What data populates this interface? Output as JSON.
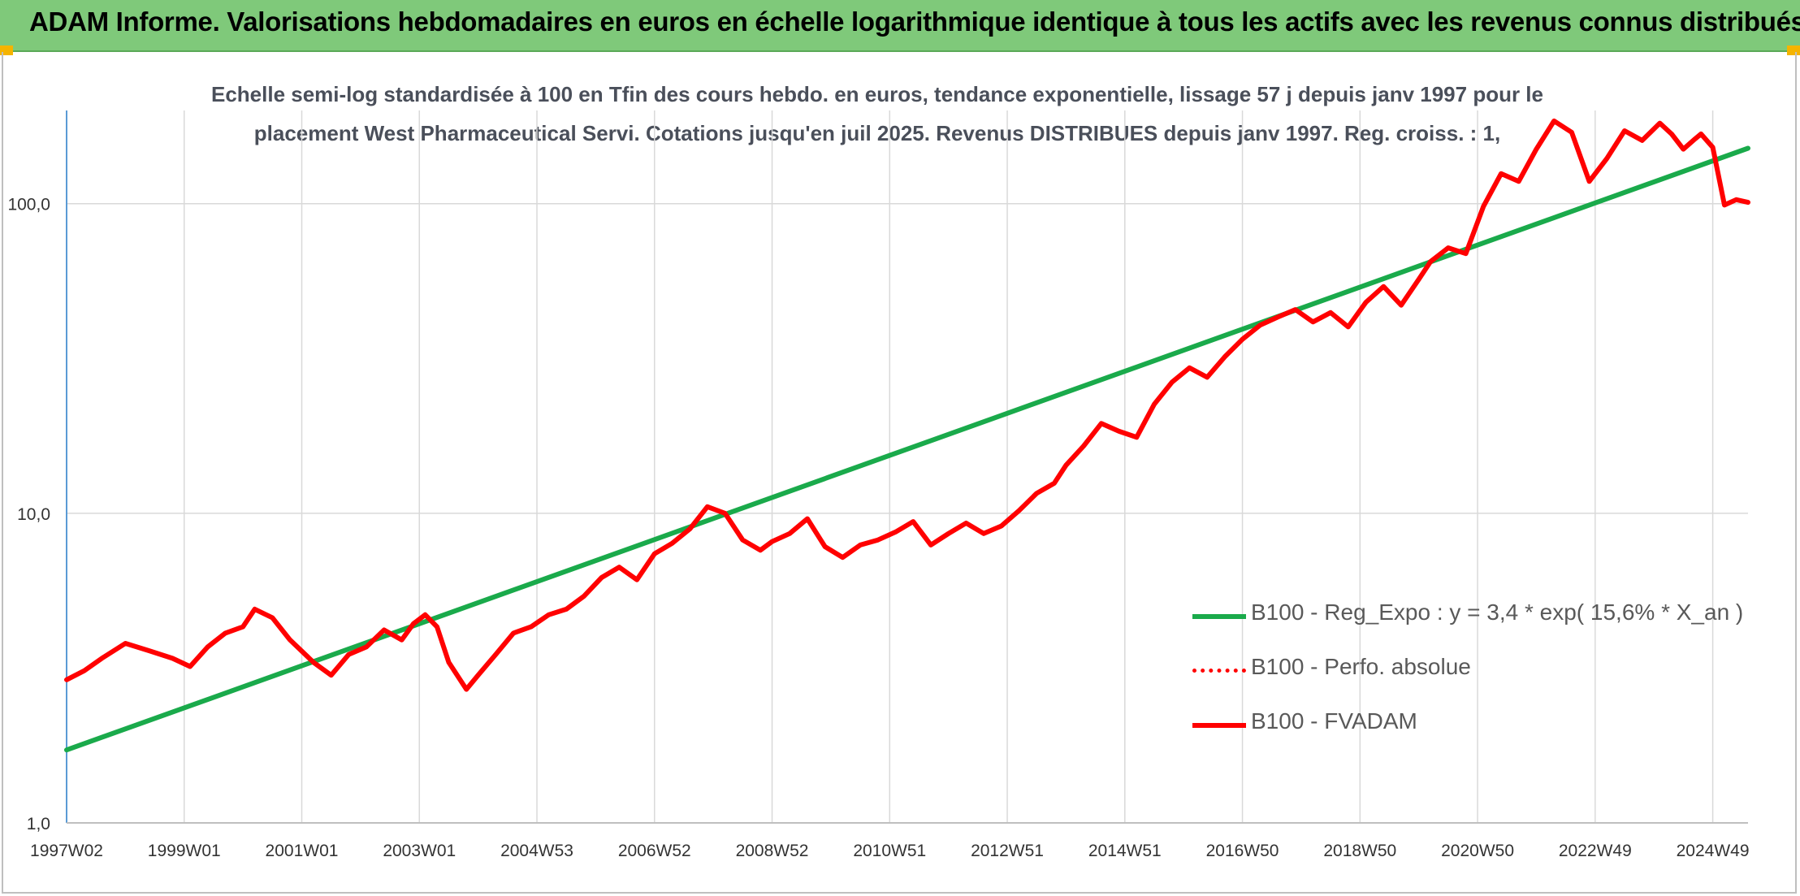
{
  "header": {
    "title": "ADAM Informe. Valorisations hebdomadaires en euros en échelle logarithmique identique à tous les actifs avec les revenus connus distribués"
  },
  "colors": {
    "banner": "#7fc97a",
    "trend": "#1aaa4b",
    "fvadam": "#ff0000",
    "perfo": "#ff0000",
    "grid": "#d9d9d9"
  },
  "chart_data": {
    "type": "line",
    "title": "Echelle semi-log standardisée à 100 en Tfin des cours hebdo. en euros, tendance exponentielle, lissage 57 j depuis janv 1997 pour le placement West Pharmaceutical Servi. Cotations jusqu'en juil 2025. Revenus DISTRIBUES depuis janv 1997. Reg. croiss. : 1,",
    "y_scale": "log",
    "ylim": [
      1,
      200
    ],
    "y_ticks": [
      1,
      10,
      100
    ],
    "y_tick_labels": [
      "1,0",
      "10,0",
      "100,0"
    ],
    "xlim": [
      1997.0,
      2025.6
    ],
    "x_tick_labels": [
      "1997W02",
      "1999W01",
      "2001W01",
      "2003W01",
      "2004W53",
      "2006W52",
      "2008W52",
      "2010W51",
      "2012W51",
      "2014W51",
      "2016W50",
      "2018W50",
      "2020W50",
      "2022W49",
      "2024W49"
    ],
    "x_tick_values": [
      1997.0,
      1999.0,
      2001.0,
      2003.0,
      2005.0,
      2007.0,
      2009.0,
      2011.0,
      2013.0,
      2015.0,
      2017.0,
      2019.0,
      2021.0,
      2023.0,
      2025.0
    ],
    "grid": true,
    "legend_position": "bottom-right",
    "series": [
      {
        "name": "B100 - Reg_Expo : y = 3,4 * exp( 15,6% *  X_an )",
        "style": "solid",
        "color": "#1aaa4b",
        "x": [
          1997.0,
          2025.6
        ],
        "y": [
          1.72,
          151
        ]
      },
      {
        "name": "B100 - Perfo. absolue",
        "style": "dotted",
        "color": "#ff0000",
        "x": [],
        "y": []
      },
      {
        "name": "B100 - FVADAM",
        "style": "solid",
        "color": "#ff0000",
        "x": [
          1997.0,
          1997.3,
          1997.6,
          1998.0,
          1998.4,
          1998.8,
          1999.1,
          1999.4,
          1999.7,
          2000.0,
          2000.2,
          2000.5,
          2000.8,
          2001.2,
          2001.5,
          2001.8,
          2002.1,
          2002.4,
          2002.7,
          2002.9,
          2003.1,
          2003.3,
          2003.5,
          2003.8,
          2004.0,
          2004.3,
          2004.6,
          2004.9,
          2005.2,
          2005.5,
          2005.8,
          2006.1,
          2006.4,
          2006.7,
          2007.0,
          2007.3,
          2007.6,
          2007.9,
          2008.2,
          2008.5,
          2008.8,
          2009.0,
          2009.3,
          2009.6,
          2009.9,
          2010.2,
          2010.5,
          2010.8,
          2011.1,
          2011.4,
          2011.7,
          2012.0,
          2012.3,
          2012.6,
          2012.9,
          2013.2,
          2013.5,
          2013.8,
          2014.0,
          2014.3,
          2014.6,
          2014.9,
          2015.2,
          2015.5,
          2015.8,
          2016.1,
          2016.4,
          2016.7,
          2017.0,
          2017.3,
          2017.6,
          2017.9,
          2018.2,
          2018.5,
          2018.8,
          2019.1,
          2019.4,
          2019.7,
          2020.0,
          2020.2,
          2020.5,
          2020.8,
          2021.1,
          2021.4,
          2021.7,
          2022.0,
          2022.3,
          2022.6,
          2022.9,
          2023.2,
          2023.5,
          2023.8,
          2024.1,
          2024.3,
          2024.5,
          2024.7,
          2024.8,
          2025.0,
          2025.2,
          2025.4,
          2025.6
        ],
        "y": [
          2.9,
          3.1,
          3.4,
          3.8,
          3.6,
          3.4,
          3.2,
          3.7,
          4.1,
          4.3,
          4.9,
          4.6,
          3.9,
          3.3,
          3.0,
          3.5,
          3.7,
          4.2,
          3.9,
          4.4,
          4.7,
          4.3,
          3.3,
          2.7,
          3.0,
          3.5,
          4.1,
          4.3,
          4.7,
          4.9,
          5.4,
          6.2,
          6.7,
          6.1,
          7.4,
          8.0,
          8.9,
          10.5,
          10.0,
          8.2,
          7.6,
          8.1,
          8.6,
          9.6,
          7.8,
          7.2,
          7.9,
          8.2,
          8.7,
          9.4,
          7.9,
          8.6,
          9.3,
          8.6,
          9.1,
          10.2,
          11.6,
          12.5,
          14.3,
          16.5,
          19.5,
          18.4,
          17.6,
          22.5,
          26.5,
          29.5,
          27.5,
          32.0,
          36.5,
          40.5,
          43.0,
          45.5,
          41.5,
          44.5,
          40.0,
          48.0,
          54.0,
          47.0,
          57.0,
          65.0,
          72.0,
          69.0,
          98.0,
          125.0,
          118.0,
          150.0,
          185.0,
          170.0,
          118.0,
          140.0,
          172.0,
          160.0,
          182.0,
          168.0,
          150.0,
          162.0,
          168.0,
          152.0,
          99.0,
          103.0,
          101.0
        ]
      }
    ]
  }
}
